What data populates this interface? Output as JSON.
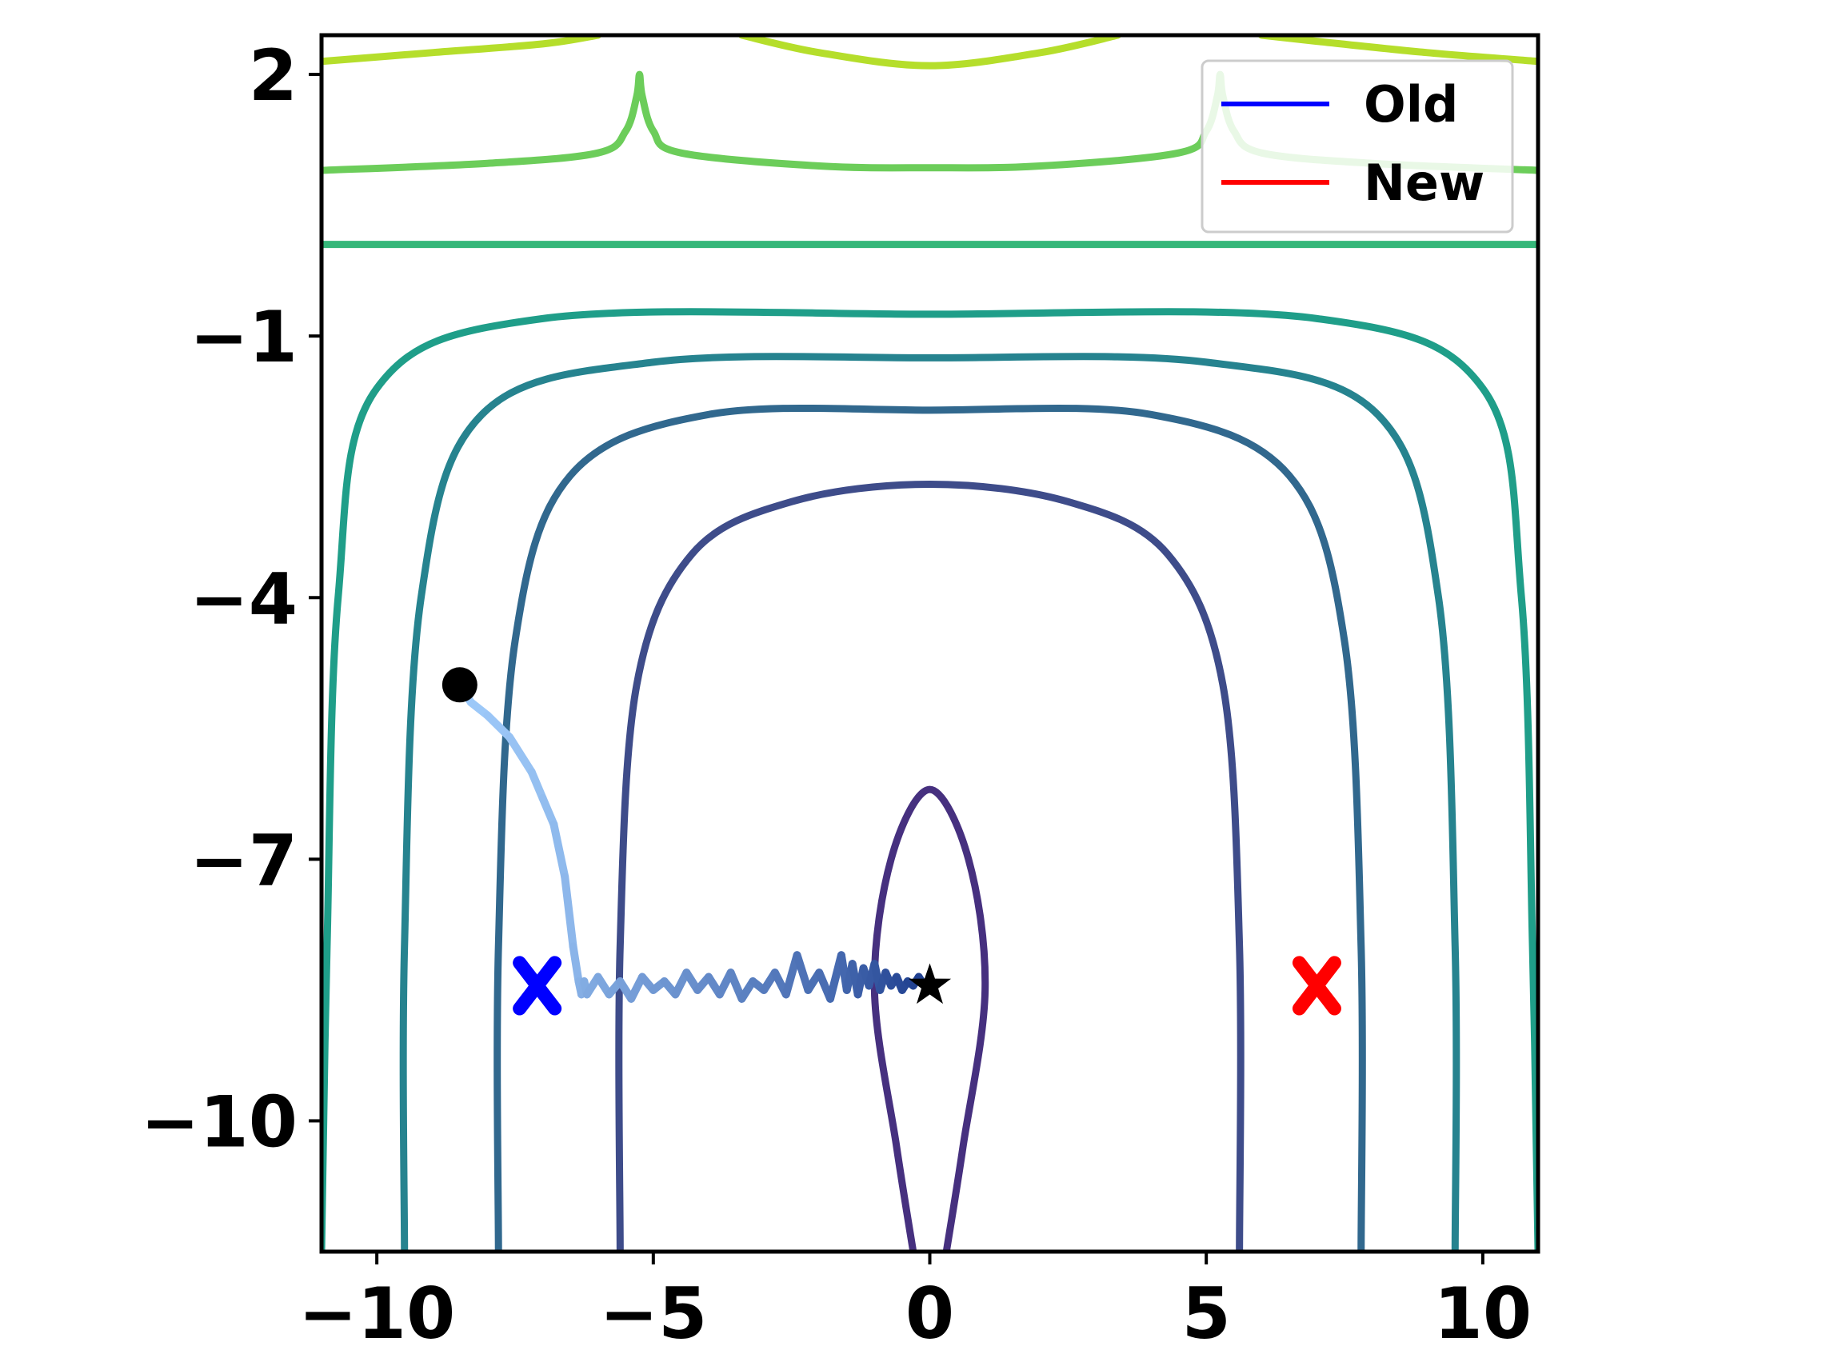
{
  "chart_data": {
    "type": "line",
    "xlim": [
      -11,
      11
    ],
    "ylim": [
      -11.5,
      2.45
    ],
    "x_ticks": [
      {
        "value": -10,
        "label": "−10"
      },
      {
        "value": -5,
        "label": "−5"
      },
      {
        "value": 0,
        "label": "0"
      },
      {
        "value": 5,
        "label": "5"
      },
      {
        "value": 10,
        "label": "10"
      }
    ],
    "y_ticks": [
      {
        "value": 2,
        "label": "2"
      },
      {
        "value": -1,
        "label": "−1"
      },
      {
        "value": -4,
        "label": "−4"
      },
      {
        "value": -7,
        "label": "−7"
      },
      {
        "value": -10,
        "label": "−10"
      }
    ],
    "grid": false,
    "legend": {
      "placement": "top-right",
      "entries": [
        {
          "label": "Old",
          "color": "#0000ff"
        },
        {
          "label": "New",
          "color": "#ff0000"
        }
      ]
    },
    "contours": [
      {
        "color": "#46307f",
        "points": [
          [
            -0.3,
            -11.5
          ],
          [
            -0.6,
            -10.3
          ],
          [
            -1.0,
            -8.5
          ],
          [
            -0.7,
            -7.0
          ],
          [
            0.0,
            -6.2
          ],
          [
            0.7,
            -7.0
          ],
          [
            1.0,
            -8.5
          ],
          [
            0.6,
            -10.3
          ],
          [
            0.3,
            -11.5
          ]
        ]
      },
      {
        "color": "#3e4c8a",
        "points": [
          [
            -5.6,
            -11.5
          ],
          [
            -5.6,
            -8.0
          ],
          [
            -5.3,
            -5.0
          ],
          [
            -4.3,
            -3.5
          ],
          [
            -2.5,
            -2.9
          ],
          [
            0,
            -2.7
          ],
          [
            2.5,
            -2.9
          ],
          [
            4.3,
            -3.5
          ],
          [
            5.3,
            -5.0
          ],
          [
            5.6,
            -8.0
          ],
          [
            5.6,
            -11.5
          ]
        ]
      },
      {
        "color": "#31688e",
        "points": [
          [
            -7.8,
            -11.5
          ],
          [
            -7.8,
            -8.0
          ],
          [
            -7.5,
            -4.5
          ],
          [
            -6.5,
            -2.6
          ],
          [
            -4.0,
            -1.9
          ],
          [
            0,
            -1.85
          ],
          [
            4.0,
            -1.9
          ],
          [
            6.5,
            -2.6
          ],
          [
            7.5,
            -4.5
          ],
          [
            7.8,
            -8.0
          ],
          [
            7.8,
            -11.5
          ]
        ]
      },
      {
        "color": "#26838f",
        "points": [
          [
            -9.5,
            -11.5
          ],
          [
            -9.5,
            -8.0
          ],
          [
            -9.2,
            -4.0
          ],
          [
            -8.1,
            -1.9
          ],
          [
            -5.0,
            -1.3
          ],
          [
            0,
            -1.25
          ],
          [
            5.0,
            -1.3
          ],
          [
            8.1,
            -1.9
          ],
          [
            9.2,
            -4.0
          ],
          [
            9.5,
            -8.0
          ],
          [
            9.5,
            -11.5
          ]
        ]
      },
      {
        "color": "#1f9e89",
        "points": [
          [
            -11.0,
            -11.5
          ],
          [
            -10.9,
            -8.0
          ],
          [
            -10.7,
            -4.0
          ],
          [
            -10.0,
            -1.6
          ],
          [
            -7.0,
            -0.8
          ],
          [
            0,
            -0.75
          ],
          [
            7.0,
            -0.8
          ],
          [
            10.0,
            -1.6
          ],
          [
            10.7,
            -4.0
          ],
          [
            10.9,
            -8.0
          ],
          [
            11.0,
            -11.5
          ]
        ]
      },
      {
        "color": "#35b779",
        "points": [
          [
            -11,
            0.05
          ],
          [
            11,
            0.05
          ]
        ]
      },
      {
        "color": "#6ccd5a",
        "points": [
          [
            -11,
            0.9
          ],
          [
            -8,
            0.98
          ],
          [
            -6,
            1.1
          ],
          [
            -5.5,
            1.35
          ],
          [
            -5.3,
            1.75
          ],
          [
            -5.25,
            2.0
          ],
          [
            -5.2,
            1.75
          ],
          [
            -5.0,
            1.35
          ],
          [
            -4.5,
            1.1
          ],
          [
            -2,
            0.95
          ],
          [
            0,
            0.93
          ],
          [
            2,
            0.95
          ],
          [
            4.5,
            1.1
          ],
          [
            5.0,
            1.35
          ],
          [
            5.2,
            1.75
          ],
          [
            5.25,
            2.0
          ],
          [
            5.3,
            1.75
          ],
          [
            5.5,
            1.35
          ],
          [
            6,
            1.1
          ],
          [
            8,
            0.98
          ],
          [
            11,
            0.9
          ]
        ]
      },
      {
        "color": "#b5de2b",
        "points": [
          [
            -11,
            2.15
          ],
          [
            -9,
            2.25
          ],
          [
            -7,
            2.35
          ],
          [
            -6,
            2.45
          ]
        ]
      },
      {
        "color": "#b5de2b",
        "points": [
          [
            -3.4,
            2.45
          ],
          [
            -2,
            2.25
          ],
          [
            0,
            2.1
          ],
          [
            2,
            2.25
          ],
          [
            3.4,
            2.45
          ]
        ]
      },
      {
        "color": "#b5de2b",
        "points": [
          [
            6,
            2.45
          ],
          [
            7,
            2.38
          ],
          [
            9,
            2.25
          ],
          [
            11,
            2.15
          ]
        ]
      }
    ],
    "series": [
      {
        "color_start": "#9fcbfa",
        "color_end": "#1f3f8f",
        "x": [
          -8.5,
          -8.3,
          -8.0,
          -7.6,
          -7.2,
          -7.0,
          -6.8,
          -6.6,
          -6.45,
          -6.35,
          -6.3,
          -6.25,
          -6.2,
          -6.0,
          -5.8,
          -5.6,
          -5.4,
          -5.2,
          -5.0,
          -4.8,
          -4.6,
          -4.4,
          -4.2,
          -4.0,
          -3.8,
          -3.6,
          -3.4,
          -3.2,
          -3.0,
          -2.8,
          -2.6,
          -2.4,
          -2.2,
          -2.0,
          -1.8,
          -1.6,
          -1.5,
          -1.4,
          -1.3,
          -1.2,
          -1.1,
          -1.0,
          -0.9,
          -0.8,
          -0.7,
          -0.6,
          -0.5,
          -0.4,
          -0.3,
          -0.2,
          -0.1
        ],
        "y": [
          -5.0,
          -5.2,
          -5.35,
          -5.6,
          -6.0,
          -6.3,
          -6.6,
          -7.2,
          -8.0,
          -8.4,
          -8.55,
          -8.4,
          -8.55,
          -8.35,
          -8.55,
          -8.4,
          -8.6,
          -8.35,
          -8.5,
          -8.4,
          -8.55,
          -8.3,
          -8.5,
          -8.35,
          -8.55,
          -8.3,
          -8.6,
          -8.4,
          -8.5,
          -8.3,
          -8.55,
          -8.1,
          -8.5,
          -8.3,
          -8.6,
          -8.1,
          -8.5,
          -8.2,
          -8.55,
          -8.25,
          -8.45,
          -8.2,
          -8.5,
          -8.3,
          -8.45,
          -8.35,
          -8.5,
          -8.4,
          -8.45,
          -8.35,
          -8.45
        ]
      }
    ],
    "markers": [
      {
        "name": "start-point",
        "shape": "circle",
        "x": -8.5,
        "y": -5.0,
        "color": "#000000"
      },
      {
        "name": "old-target",
        "shape": "x",
        "x": -7.1,
        "y": -8.45,
        "color": "#0000ff"
      },
      {
        "name": "new-target",
        "shape": "x",
        "x": 7.0,
        "y": -8.45,
        "color": "#ff0000"
      },
      {
        "name": "optimum-star",
        "shape": "star",
        "x": 0.0,
        "y": -8.45,
        "color": "#000000"
      }
    ]
  }
}
